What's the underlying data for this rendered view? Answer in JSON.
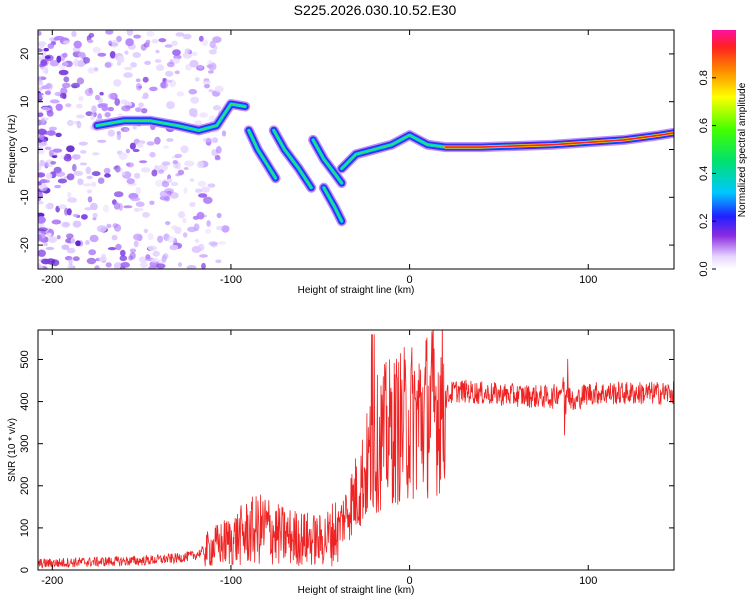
{
  "title": "S225.2026.030.10.52.E30",
  "chart_data": [
    {
      "type": "heatmap",
      "xlabel": "Height of straight line (km)",
      "ylabel": "Frequency (Hz)",
      "xlim": [
        -208,
        148
      ],
      "ylim": [
        -25,
        25
      ],
      "xticks": [
        "-200",
        "-100",
        "0",
        "100"
      ],
      "yticks": [
        "20",
        "10",
        "0",
        "-10",
        "-20"
      ],
      "colorbar": {
        "label": "Normalized spectral amplitude",
        "range": [
          0.0,
          1.0
        ],
        "ticks": [
          "0.0",
          "0.2",
          "0.4",
          "0.6",
          "0.8"
        ]
      },
      "ridge_segments": [
        {
          "x": [
            -175,
            -160,
            -145,
            -130,
            -118,
            -108,
            -100,
            -92
          ],
          "y": [
            5,
            6,
            6,
            5,
            4,
            5,
            9.5,
            9
          ]
        },
        {
          "x": [
            -90,
            -85,
            -80,
            -75
          ],
          "y": [
            4,
            0,
            -3,
            -6
          ]
        },
        {
          "x": [
            -76,
            -70,
            -62,
            -55
          ],
          "y": [
            4,
            0,
            -4,
            -8
          ]
        },
        {
          "x": [
            -54,
            -48,
            -42,
            -38
          ],
          "y": [
            2,
            -2,
            -5,
            -7
          ]
        },
        {
          "x": [
            -48,
            -42,
            -38
          ],
          "y": [
            -8,
            -12,
            -15
          ]
        },
        {
          "x": [
            -38,
            -30,
            -20,
            -10,
            0,
            5,
            10,
            20,
            40,
            80,
            100,
            120,
            140,
            148
          ],
          "y": [
            -4,
            -1,
            0,
            1,
            3,
            2,
            1,
            0.5,
            0.5,
            1,
            1.5,
            2,
            3,
            3.5
          ]
        }
      ]
    },
    {
      "type": "line",
      "xlabel": "Height of straight line (km)",
      "ylabel": "SNR (10 * v/v)",
      "xlim": [
        -208,
        148
      ],
      "ylim": [
        0,
        570
      ],
      "xticks": [
        "-200",
        "-100",
        "0",
        "100"
      ],
      "yticks": [
        "0",
        "100",
        "200",
        "300",
        "400",
        "500"
      ],
      "color": "#ee2222",
      "series": [
        {
          "name": "SNR",
          "x": [
            -208,
            -190,
            -170,
            -150,
            -130,
            -120,
            -115,
            -110,
            -100,
            -95,
            -90,
            -85,
            -80,
            -75,
            -70,
            -60,
            -50,
            -45,
            -40,
            -35,
            -30,
            -25,
            -22,
            -20,
            -18,
            -15,
            -10,
            -5,
            0,
            5,
            10,
            15,
            20,
            25,
            30,
            40,
            60,
            80,
            85,
            88,
            90,
            92,
            95,
            100,
            120,
            148
          ],
          "y": [
            15,
            18,
            20,
            22,
            28,
            35,
            45,
            55,
            70,
            80,
            90,
            95,
            100,
            85,
            80,
            75,
            70,
            80,
            100,
            140,
            180,
            230,
            270,
            290,
            300,
            315,
            330,
            340,
            350,
            365,
            375,
            385,
            410,
            425,
            425,
            420,
            415,
            410,
            430,
            440,
            410,
            390,
            410,
            420,
            420,
            420
          ]
        }
      ]
    }
  ]
}
